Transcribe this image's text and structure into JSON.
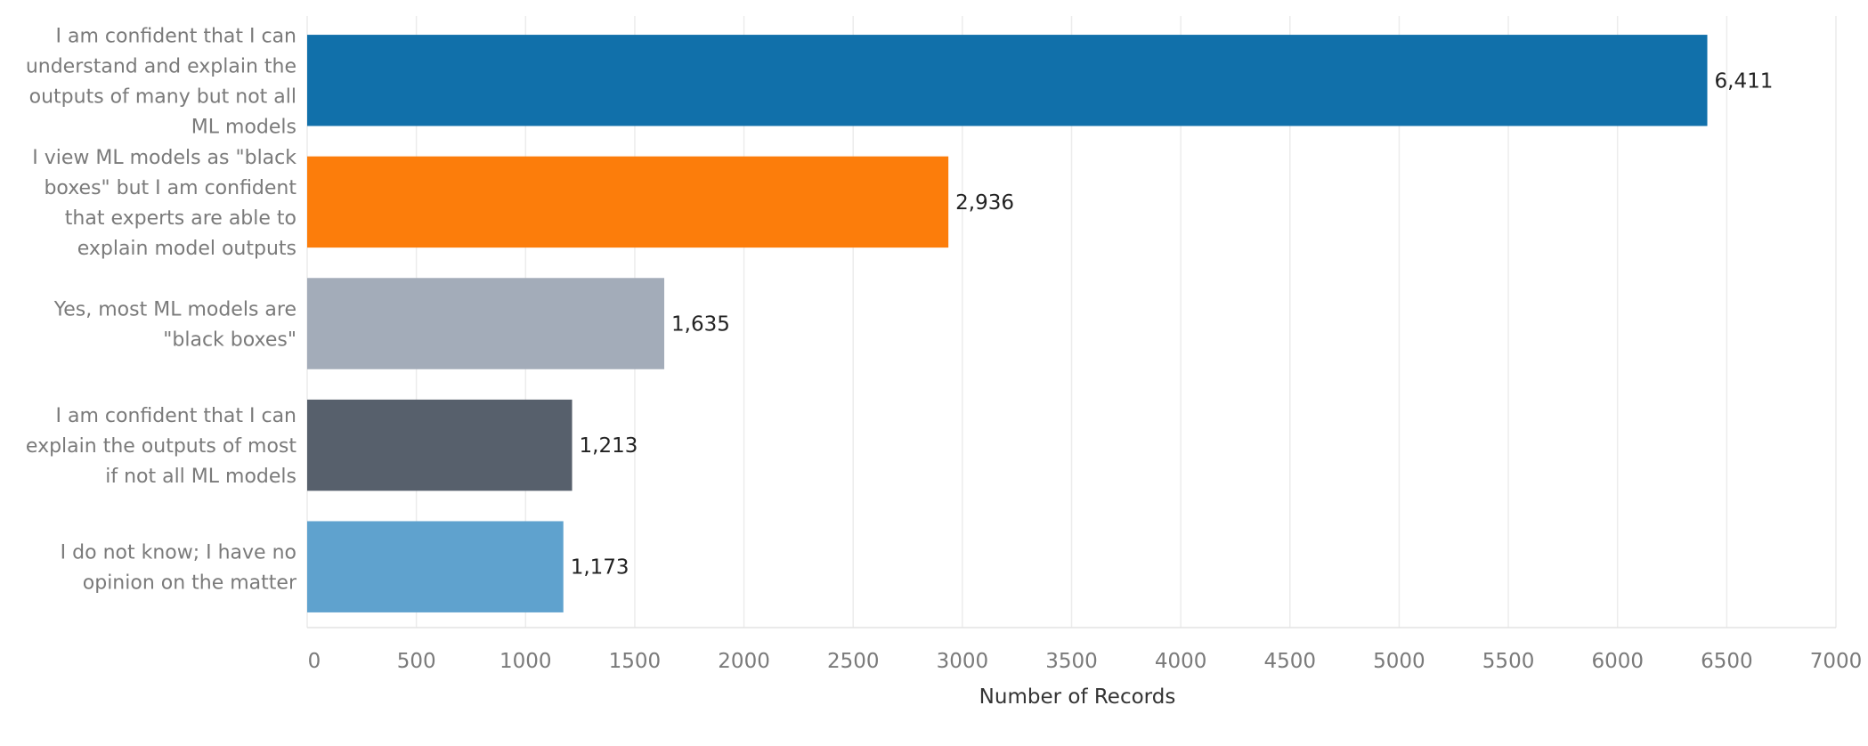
{
  "chart_data": {
    "type": "bar",
    "orientation": "horizontal",
    "categories": [
      [
        "I am confident that I can",
        "understand and explain the",
        "outputs of many but not all",
        "ML models"
      ],
      [
        "I view ML models as \"black",
        "boxes\" but I am confident",
        "that experts are able to",
        "explain model outputs"
      ],
      [
        "Yes, most ML models are",
        "\"black boxes\""
      ],
      [
        "I am confident that I can",
        "explain the outputs of most",
        "if not all ML models"
      ],
      [
        "I do not know; I have no",
        "opinion on the matter"
      ]
    ],
    "values": [
      6411,
      2936,
      1635,
      1213,
      1173
    ],
    "value_labels": [
      "6,411",
      "2,936",
      "1,635",
      "1,213",
      "1,173"
    ],
    "colors": [
      "#1170aa",
      "#fc7d0b",
      "#a3acb9",
      "#57606c",
      "#5fa2ce"
    ],
    "xlabel": "Number of Records",
    "xlim": [
      0,
      7000
    ],
    "xticks": [
      0,
      500,
      1000,
      1500,
      2000,
      2500,
      3000,
      3500,
      4000,
      4500,
      5000,
      5500,
      6000,
      6500,
      7000
    ],
    "xtick_labels": [
      "0",
      "500",
      "1000",
      "1500",
      "2000",
      "2500",
      "3000",
      "3500",
      "4000",
      "4500",
      "5000",
      "5500",
      "6000",
      "6500",
      "7000"
    ],
    "grid": true
  }
}
